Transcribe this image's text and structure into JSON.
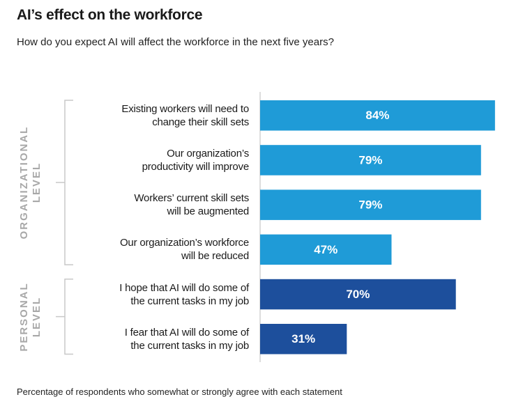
{
  "chart_data": {
    "type": "bar",
    "orientation": "horizontal",
    "title": "AI’s effect on the workforce",
    "subtitle": "How do you expect  AI will affect the workforce in the next five years?",
    "note": "Percentage of respondents who somewhat or strongly agree with each statement",
    "categories": [
      "Existing workers will need to\nchange their skill sets",
      "Our organization’s\nproductivity will improve",
      "Workers’ current skill sets\nwill be augmented",
      "Our organization’s workforce\nwill be reduced",
      "I hope that AI will do some of\nthe current tasks in my job",
      "I fear that AI will do some of\nthe current  tasks in my job"
    ],
    "series": [
      {
        "name": "ORGANIZATIONAL\nLEVEL",
        "color": "#1f9bd7",
        "values": [
          84,
          79,
          79,
          47,
          null,
          null
        ],
        "value_labels": [
          "84%",
          "79%",
          "79%",
          "47%",
          null,
          null
        ]
      },
      {
        "name": "PERSONAL\nLEVEL",
        "color": "#1d4f9c",
        "values": [
          null,
          null,
          null,
          null,
          70,
          31
        ],
        "value_labels": [
          null,
          null,
          null,
          null,
          "70%",
          "31%"
        ]
      }
    ]
  }
}
